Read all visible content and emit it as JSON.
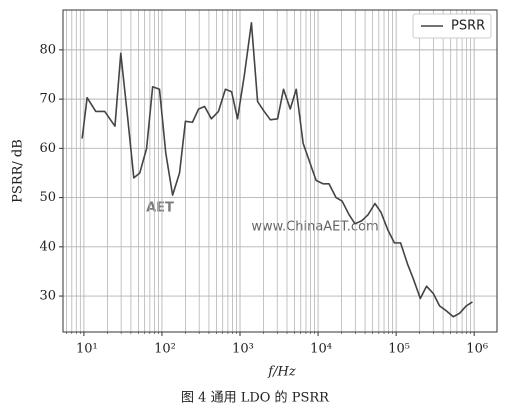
{
  "chart_data": {
    "type": "line",
    "caption": "图 4   通用 LDO 的 PSRR",
    "xlabel": "f/Hz",
    "ylabel": "PSRR/ dB",
    "watermark": [
      "AET",
      "www.ChinaAET.com"
    ],
    "xscale": "log",
    "grid": true,
    "legend": "upper right",
    "xlim": [
      5.4,
      1960000
    ],
    "ylim": [
      22.7,
      88.1
    ],
    "xticks": [
      {
        "value": 10,
        "label": "10¹"
      },
      {
        "value": 100,
        "label": "10²"
      },
      {
        "value": 1000,
        "label": "10³"
      },
      {
        "value": 10000,
        "label": "10⁴"
      },
      {
        "value": 100000,
        "label": "10⁵"
      },
      {
        "value": 1000000,
        "label": "10⁶"
      }
    ],
    "xminorticks": [
      6,
      7,
      8,
      9,
      20,
      30,
      40,
      50,
      60,
      70,
      80,
      90,
      200,
      300,
      400,
      500,
      600,
      700,
      800,
      900,
      2000,
      3000,
      4000,
      5000,
      6000,
      7000,
      8000,
      9000,
      20000,
      30000,
      40000,
      50000,
      60000,
      70000,
      80000,
      90000,
      200000,
      300000,
      400000,
      500000,
      600000,
      700000,
      800000,
      900000
    ],
    "yticks": [
      30,
      40,
      50,
      60,
      70,
      80
    ],
    "series": [
      {
        "name": "PSRR",
        "color": "#444444",
        "x": [
          9.5,
          11,
          14.2,
          18.5,
          25,
          29.7,
          36.5,
          43.6,
          52,
          63.6,
          76,
          93,
          112,
          137,
          168,
          200,
          246,
          295,
          352,
          430,
          530,
          650,
          780,
          930,
          1140,
          1400,
          1680,
          2040,
          2450,
          3030,
          3610,
          4400,
          5250,
          6440,
          7700,
          9430,
          11600,
          13800,
          17000,
          20300,
          25000,
          29700,
          36400,
          43600,
          53500,
          64000,
          78000,
          95000,
          114000,
          140000,
          166000,
          204000,
          245000,
          300000,
          360000,
          440000,
          540000,
          650000,
          790000,
          950000
        ],
        "values": [
          62,
          70.3,
          67.5,
          67.5,
          64.5,
          79.3,
          66,
          54,
          55,
          60,
          72.5,
          72,
          59,
          50.5,
          55,
          65.5,
          65.3,
          68,
          68.5,
          66,
          67.5,
          72,
          71.5,
          66,
          75,
          85.5,
          69.5,
          67.5,
          65.8,
          66,
          72,
          68,
          72,
          61,
          57.5,
          53.5,
          52.8,
          52.8,
          50,
          49.3,
          46.5,
          44.7,
          45.3,
          46.5,
          48.8,
          47,
          43.5,
          40.8,
          40.8,
          36.5,
          33.5,
          29.5,
          32,
          30.5,
          28,
          27,
          25.8,
          26.5,
          28,
          28.8
        ]
      }
    ]
  }
}
